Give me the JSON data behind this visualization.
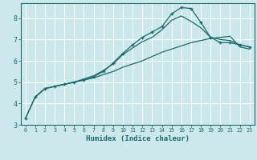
{
  "xlabel": "Humidex (Indice chaleur)",
  "bg_color": "#cce8ec",
  "line_color": "#1a6b6b",
  "grid_color": "#ffffff",
  "xlim": [
    -0.5,
    23.5
  ],
  "ylim": [
    3.0,
    8.7
  ],
  "yticks": [
    3,
    4,
    5,
    6,
    7,
    8
  ],
  "xticks": [
    0,
    1,
    2,
    3,
    4,
    5,
    6,
    7,
    8,
    9,
    10,
    11,
    12,
    13,
    14,
    15,
    16,
    17,
    18,
    19,
    20,
    21,
    22,
    23
  ],
  "curve1_x": [
    0,
    1,
    2,
    3,
    4,
    5,
    6,
    7,
    8,
    9,
    10,
    11,
    12,
    13,
    14,
    15,
    16,
    17,
    18,
    19,
    20,
    21,
    22,
    23
  ],
  "curve1_y": [
    3.3,
    4.3,
    4.7,
    4.8,
    4.9,
    5.0,
    5.1,
    5.2,
    5.35,
    5.5,
    5.7,
    5.85,
    6.0,
    6.2,
    6.4,
    6.55,
    6.7,
    6.85,
    6.95,
    7.05,
    7.1,
    7.15,
    6.65,
    6.55
  ],
  "curve2_x": [
    0,
    1,
    2,
    3,
    4,
    5,
    6,
    7,
    8,
    9,
    10,
    11,
    12,
    13,
    14,
    15,
    16,
    17,
    18,
    19,
    20,
    21,
    22,
    23
  ],
  "curve2_y": [
    3.3,
    4.3,
    4.7,
    4.8,
    4.9,
    5.0,
    5.1,
    5.25,
    5.5,
    5.9,
    6.35,
    6.75,
    7.1,
    7.35,
    7.6,
    8.2,
    8.5,
    8.45,
    7.8,
    7.1,
    6.85,
    6.85,
    6.75,
    6.65
  ],
  "curve3_x": [
    1,
    2,
    3,
    4,
    5,
    6,
    7,
    8,
    9,
    10,
    11,
    12,
    13,
    14,
    15,
    16,
    17,
    18,
    19,
    20,
    21,
    22,
    23
  ],
  "curve3_y": [
    4.3,
    4.7,
    4.8,
    4.9,
    5.0,
    5.15,
    5.3,
    5.55,
    5.85,
    6.3,
    6.6,
    6.9,
    7.1,
    7.45,
    7.9,
    8.1,
    7.85,
    7.55,
    7.1,
    7.0,
    6.95,
    6.75,
    6.65
  ],
  "marker": "+"
}
